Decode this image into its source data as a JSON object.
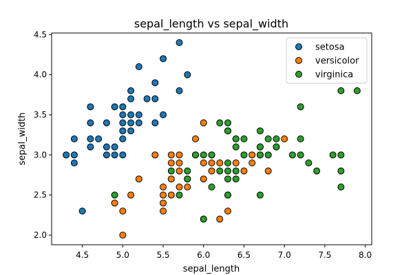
{
  "chart_data": {
    "type": "scatter",
    "title": "sepal_length vs sepal_width",
    "xlabel": "sepal_length",
    "ylabel": "sepal_width",
    "xlim": [
      4.12,
      8.08
    ],
    "ylim": [
      1.88,
      4.52
    ],
    "xticks": [
      4.5,
      5.0,
      5.5,
      6.0,
      6.5,
      7.0,
      7.5,
      8.0
    ],
    "xtick_labels": [
      "4.5",
      "5.0",
      "5.5",
      "6.0",
      "6.5",
      "7.0",
      "7.5",
      "8.0"
    ],
    "yticks": [
      2.0,
      2.5,
      3.0,
      3.5,
      4.0,
      4.5
    ],
    "ytick_labels": [
      "2.0",
      "2.5",
      "3.0",
      "3.5",
      "4.0",
      "4.5"
    ],
    "grid": false,
    "legend_position": "top-right",
    "series": [
      {
        "name": "setosa",
        "color": "#1f77b4",
        "points": [
          [
            4.3,
            3.0
          ],
          [
            4.4,
            2.9
          ],
          [
            4.4,
            3.0
          ],
          [
            4.4,
            3.2
          ],
          [
            4.5,
            2.3
          ],
          [
            4.6,
            3.1
          ],
          [
            4.6,
            3.2
          ],
          [
            4.6,
            3.4
          ],
          [
            4.6,
            3.6
          ],
          [
            4.7,
            3.2
          ],
          [
            4.8,
            3.0
          ],
          [
            4.8,
            3.1
          ],
          [
            4.8,
            3.4
          ],
          [
            4.9,
            3.0
          ],
          [
            4.9,
            3.1
          ],
          [
            4.9,
            3.6
          ],
          [
            5.0,
            3.0
          ],
          [
            5.0,
            3.2
          ],
          [
            5.0,
            3.3
          ],
          [
            5.0,
            3.4
          ],
          [
            5.0,
            3.5
          ],
          [
            5.0,
            3.6
          ],
          [
            5.1,
            3.3
          ],
          [
            5.1,
            3.4
          ],
          [
            5.1,
            3.5
          ],
          [
            5.1,
            3.7
          ],
          [
            5.1,
            3.8
          ],
          [
            5.2,
            3.4
          ],
          [
            5.2,
            3.5
          ],
          [
            5.2,
            4.1
          ],
          [
            5.3,
            3.7
          ],
          [
            5.4,
            3.4
          ],
          [
            5.4,
            3.7
          ],
          [
            5.4,
            3.9
          ],
          [
            5.5,
            3.5
          ],
          [
            5.5,
            4.2
          ],
          [
            5.7,
            3.8
          ],
          [
            5.7,
            4.4
          ],
          [
            5.8,
            4.0
          ]
        ]
      },
      {
        "name": "versicolor",
        "color": "#ff7f0e",
        "points": [
          [
            4.9,
            2.4
          ],
          [
            5.0,
            2.0
          ],
          [
            5.0,
            2.3
          ],
          [
            5.1,
            2.5
          ],
          [
            5.2,
            2.7
          ],
          [
            5.4,
            3.0
          ],
          [
            5.5,
            2.3
          ],
          [
            5.5,
            2.4
          ],
          [
            5.5,
            2.5
          ],
          [
            5.5,
            2.6
          ],
          [
            5.6,
            2.5
          ],
          [
            5.6,
            2.7
          ],
          [
            5.6,
            2.9
          ],
          [
            5.6,
            3.0
          ],
          [
            5.7,
            2.6
          ],
          [
            5.7,
            2.8
          ],
          [
            5.7,
            2.9
          ],
          [
            5.7,
            3.0
          ],
          [
            5.8,
            2.6
          ],
          [
            5.8,
            2.7
          ],
          [
            5.9,
            3.0
          ],
          [
            5.9,
            3.2
          ],
          [
            6.0,
            2.2
          ],
          [
            6.0,
            2.7
          ],
          [
            6.0,
            2.9
          ],
          [
            6.0,
            3.4
          ],
          [
            6.1,
            2.8
          ],
          [
            6.1,
            2.9
          ],
          [
            6.1,
            3.0
          ],
          [
            6.2,
            2.2
          ],
          [
            6.2,
            2.9
          ],
          [
            6.3,
            2.3
          ],
          [
            6.3,
            2.5
          ],
          [
            6.3,
            3.3
          ],
          [
            6.4,
            2.9
          ],
          [
            6.4,
            3.2
          ],
          [
            6.5,
            2.8
          ],
          [
            6.6,
            2.9
          ],
          [
            6.6,
            3.0
          ],
          [
            6.7,
            3.0
          ],
          [
            6.7,
            3.1
          ],
          [
            6.8,
            2.8
          ],
          [
            6.9,
            3.1
          ],
          [
            7.0,
            3.2
          ]
        ]
      },
      {
        "name": "virginica",
        "color": "#2ca02c",
        "points": [
          [
            4.9,
            2.5
          ],
          [
            5.6,
            2.8
          ],
          [
            5.7,
            2.5
          ],
          [
            5.8,
            2.7
          ],
          [
            5.8,
            2.8
          ],
          [
            5.9,
            3.0
          ],
          [
            6.0,
            2.2
          ],
          [
            6.0,
            3.0
          ],
          [
            6.1,
            2.6
          ],
          [
            6.1,
            3.0
          ],
          [
            6.2,
            2.8
          ],
          [
            6.2,
            3.4
          ],
          [
            6.3,
            2.5
          ],
          [
            6.3,
            2.7
          ],
          [
            6.3,
            2.8
          ],
          [
            6.3,
            2.9
          ],
          [
            6.3,
            3.3
          ],
          [
            6.3,
            3.4
          ],
          [
            6.4,
            2.7
          ],
          [
            6.4,
            2.8
          ],
          [
            6.4,
            3.1
          ],
          [
            6.4,
            3.2
          ],
          [
            6.5,
            3.0
          ],
          [
            6.5,
            3.2
          ],
          [
            6.7,
            2.5
          ],
          [
            6.7,
            3.0
          ],
          [
            6.7,
            3.1
          ],
          [
            6.7,
            3.3
          ],
          [
            6.8,
            3.0
          ],
          [
            6.8,
            3.2
          ],
          [
            6.9,
            3.1
          ],
          [
            6.9,
            3.2
          ],
          [
            7.1,
            3.0
          ],
          [
            7.2,
            3.0
          ],
          [
            7.2,
            3.2
          ],
          [
            7.2,
            3.6
          ],
          [
            7.3,
            2.9
          ],
          [
            7.4,
            2.8
          ],
          [
            7.6,
            3.0
          ],
          [
            7.7,
            2.6
          ],
          [
            7.7,
            2.8
          ],
          [
            7.7,
            3.0
          ],
          [
            7.7,
            3.8
          ],
          [
            7.9,
            3.8
          ]
        ]
      }
    ]
  }
}
